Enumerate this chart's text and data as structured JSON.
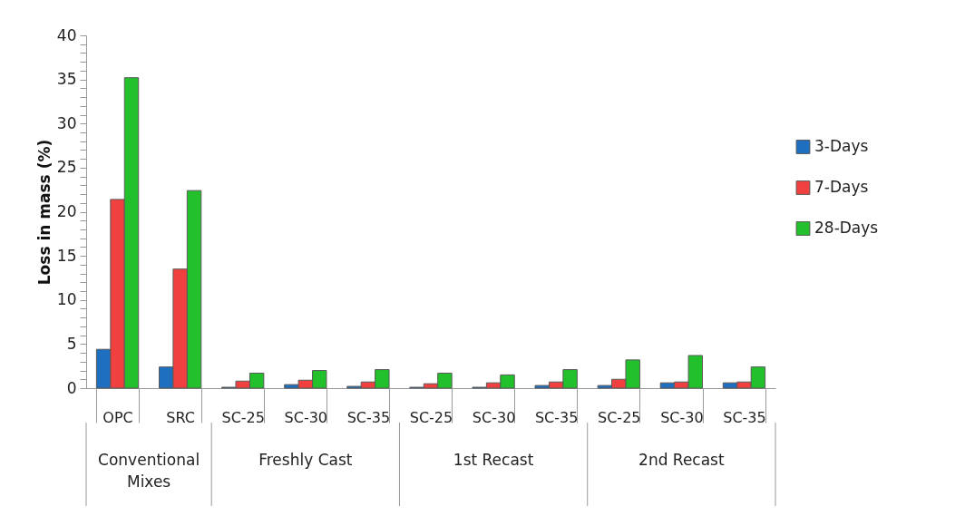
{
  "chart_data": {
    "type": "bar",
    "ylabel": "Loss in mass (%)",
    "categories": [
      "OPC",
      "SRC",
      "SC-25",
      "SC-30",
      "SC-35",
      "SC-25",
      "SC-30",
      "SC-35",
      "SC-25",
      "SC-30",
      "SC-35"
    ],
    "series": [
      {
        "name": "3-Days",
        "color": "#1f6fc0",
        "values": [
          4.4,
          2.4,
          0.1,
          0.4,
          0.2,
          0.1,
          0.1,
          0.3,
          0.3,
          0.6,
          0.6
        ]
      },
      {
        "name": "7-Days",
        "color": "#f04040",
        "values": [
          21.4,
          13.5,
          0.8,
          0.9,
          0.7,
          0.5,
          0.6,
          0.7,
          1.0,
          0.7,
          0.7
        ]
      },
      {
        "name": "28-Days",
        "color": "#22c02a",
        "values": [
          35.2,
          22.4,
          1.7,
          2.0,
          2.1,
          1.7,
          1.5,
          2.1,
          3.2,
          3.7,
          2.4
        ]
      }
    ],
    "ylim": [
      0,
      40
    ],
    "yticks": [
      0,
      {
        "value": 1,
        "label": null
      },
      {
        "value": 2,
        "label": null
      },
      {
        "value": 3,
        "label": null
      },
      {
        "value": 4,
        "label": null
      },
      5,
      {
        "value": 6,
        "label": null
      },
      {
        "value": 7,
        "label": null
      },
      {
        "value": 8,
        "label": null
      },
      {
        "value": 9,
        "label": null
      },
      10,
      {
        "value": 11,
        "label": null
      },
      {
        "value": 12,
        "label": null
      },
      {
        "value": 13,
        "label": null
      },
      {
        "value": 14,
        "label": null
      },
      15,
      {
        "value": 16,
        "label": null
      },
      {
        "value": 17,
        "label": null
      },
      {
        "value": 18,
        "label": null
      },
      {
        "value": 19,
        "label": null
      },
      20,
      {
        "value": 21,
        "label": null
      },
      {
        "value": 22,
        "label": null
      },
      {
        "value": 23,
        "label": null
      },
      {
        "value": 24,
        "label": null
      },
      25,
      {
        "value": 26,
        "label": null
      },
      {
        "value": 27,
        "label": null
      },
      {
        "value": 28,
        "label": null
      },
      {
        "value": 29,
        "label": null
      },
      30,
      {
        "value": 31,
        "label": null
      },
      {
        "value": 32,
        "label": null
      },
      {
        "value": 33,
        "label": null
      },
      {
        "value": 34,
        "label": null
      },
      35,
      {
        "value": 36,
        "label": null
      },
      {
        "value": 37,
        "label": null
      },
      {
        "value": 38,
        "label": null
      },
      {
        "value": 39,
        "label": null
      },
      40
    ],
    "annotations": [
      "Conventional Mixes",
      "Freshly Cast",
      "1st Recast",
      "2nd Recast"
    ],
    "grid": false,
    "legend": "right"
  }
}
